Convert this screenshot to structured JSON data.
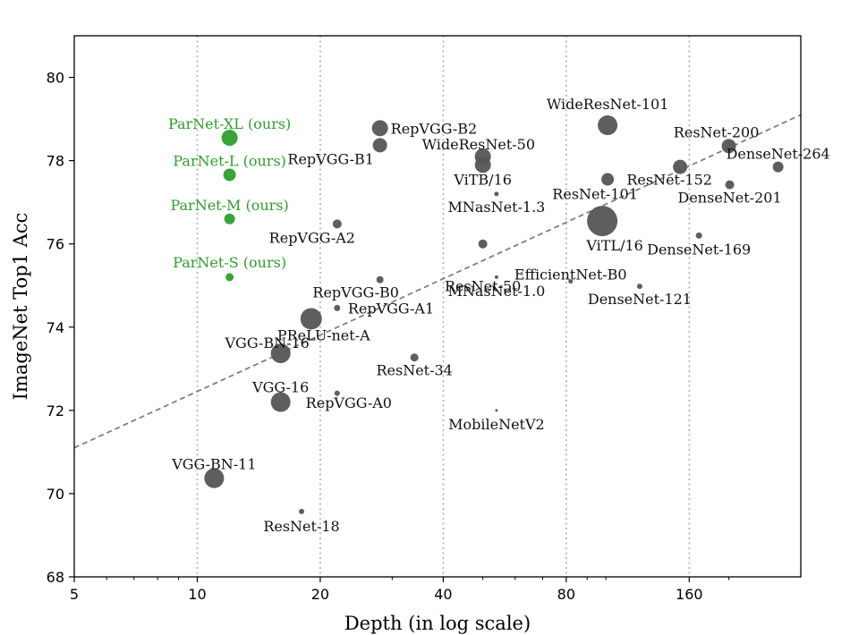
{
  "chart_data": {
    "type": "scatter",
    "xlabel": "Depth (in log scale)",
    "ylabel": "ImageNet Top1 Acc",
    "x_scale": "log",
    "xlim": [
      5,
      300
    ],
    "ylim": [
      68,
      81
    ],
    "x_ticks": [
      5,
      10,
      20,
      40,
      80,
      160
    ],
    "y_ticks": [
      68,
      70,
      72,
      74,
      76,
      78,
      80
    ],
    "vertical_grid": "dotted at 10, 20, 40, 80, 160",
    "colors": {
      "default": "#555555",
      "ours": "#2ca02c",
      "trend": "#808080"
    },
    "trend_line": {
      "x": [
        5,
        300
      ],
      "y": [
        71.1,
        79.1
      ],
      "style": "dashed"
    },
    "points": [
      {
        "label": "ParNet-XL (ours)",
        "x": 12,
        "y": 78.55,
        "size": 9,
        "group": "ours"
      },
      {
        "label": "ParNet-L (ours)",
        "x": 12,
        "y": 77.66,
        "size": 7,
        "group": "ours"
      },
      {
        "label": "ParNet-M (ours)",
        "x": 12,
        "y": 76.6,
        "size": 6,
        "group": "ours"
      },
      {
        "label": "ParNet-S (ours)",
        "x": 12,
        "y": 75.2,
        "size": 4.5,
        "group": "ours"
      },
      {
        "label": "RepVGG-B2",
        "x": 28,
        "y": 78.78,
        "size": 9
      },
      {
        "label": "RepVGG-B1",
        "x": 28,
        "y": 78.37,
        "size": 8
      },
      {
        "label": "RepVGG-A2",
        "x": 22,
        "y": 76.48,
        "size": 5
      },
      {
        "label": "RepVGG-B0",
        "x": 28,
        "y": 75.14,
        "size": 4
      },
      {
        "label": "RepVGG-A1",
        "x": 22,
        "y": 74.46,
        "size": 3.5
      },
      {
        "label": "RepVGG-A0",
        "x": 22,
        "y": 72.41,
        "size": 3
      },
      {
        "label": "WideResNet-50",
        "x": 50,
        "y": 78.1,
        "size": 9
      },
      {
        "label": "WideResNet-101",
        "x": 101,
        "y": 78.85,
        "size": 11
      },
      {
        "label": "ViTB/16",
        "x": 50,
        "y": 77.9,
        "size": 9
      },
      {
        "label": "MNasNet-1.3",
        "x": 54,
        "y": 77.2,
        "size": 2.5
      },
      {
        "label": "ResNet-101",
        "x": 101,
        "y": 77.55,
        "size": 7
      },
      {
        "label": "ResNet-152",
        "x": 152,
        "y": 77.85,
        "size": 8
      },
      {
        "label": "ResNet-200",
        "x": 200,
        "y": 78.35,
        "size": 8
      },
      {
        "label": "DenseNet-264",
        "x": 264,
        "y": 77.85,
        "size": 6
      },
      {
        "label": "DenseNet-201",
        "x": 201,
        "y": 77.42,
        "size": 5
      },
      {
        "label": "ViTL/16",
        "x": 98,
        "y": 76.55,
        "size": 17
      },
      {
        "label": "DenseNet-169",
        "x": 169,
        "y": 76.2,
        "size": 3.5
      },
      {
        "label": "ResNet-50",
        "x": 50,
        "y": 76.0,
        "size": 5
      },
      {
        "label": "EfficientNet-B0",
        "x": 82,
        "y": 75.1,
        "size": 2.5
      },
      {
        "label": "MNasNet-1.0",
        "x": 54,
        "y": 75.2,
        "size": 2
      },
      {
        "label": "DenseNet-121",
        "x": 121,
        "y": 74.98,
        "size": 3
      },
      {
        "label": "PReLU-net-A",
        "x": 19,
        "y": 74.2,
        "size": 12
      },
      {
        "label": "VGG-BN-16",
        "x": 16,
        "y": 73.37,
        "size": 11
      },
      {
        "label": "ResNet-34",
        "x": 34,
        "y": 73.27,
        "size": 4.5
      },
      {
        "label": "VGG-16",
        "x": 16,
        "y": 72.2,
        "size": 11
      },
      {
        "label": "MobileNetV2",
        "x": 54,
        "y": 72.0,
        "size": 1.5
      },
      {
        "label": "VGG-BN-11",
        "x": 11,
        "y": 70.37,
        "size": 11
      },
      {
        "label": "ResNet-18",
        "x": 18,
        "y": 69.57,
        "size": 3
      }
    ]
  }
}
